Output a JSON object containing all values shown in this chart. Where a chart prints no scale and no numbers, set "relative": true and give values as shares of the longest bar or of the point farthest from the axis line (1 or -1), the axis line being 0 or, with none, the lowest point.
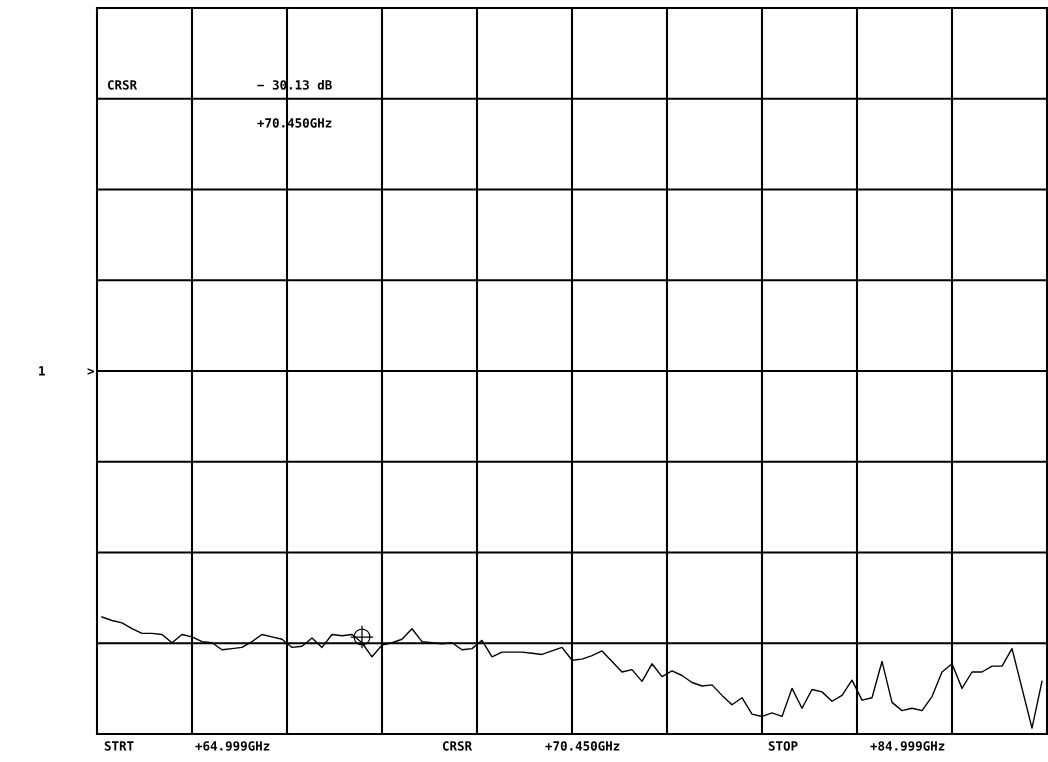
{
  "chart_data": {
    "type": "line",
    "relative": true,
    "grid": true,
    "legend": false,
    "annotations": [
      "CRSR",
      "− 30.13 dB",
      "+70.450GHz",
      "STRT",
      "+64.999GHz",
      "CRSR",
      "+70.450GHz",
      "STOP",
      "+84.999GHz",
      "1",
      ">"
    ],
    "categories": [
      null,
      null,
      null,
      null,
      null,
      null,
      null,
      null,
      null,
      null,
      null,
      null,
      null,
      null,
      null,
      null,
      null,
      null,
      null,
      null,
      null,
      null,
      null,
      null,
      null,
      null,
      null,
      null,
      null,
      null,
      null,
      null,
      null,
      null,
      null,
      null,
      null,
      null,
      null,
      null,
      null,
      null,
      null,
      null,
      null,
      null,
      null,
      null,
      null,
      null,
      null,
      null,
      null,
      null,
      null,
      null,
      null,
      null,
      null,
      null,
      null,
      null,
      null,
      null,
      null,
      null,
      null,
      null,
      null,
      null,
      null,
      null,
      null,
      null,
      null,
      null,
      null,
      null,
      null,
      null,
      null,
      null,
      null,
      null,
      null,
      null,
      null,
      null,
      null,
      null,
      null,
      null,
      null,
      null,
      null
    ],
    "series": [
      {
        "color": "#000000",
        "marker": "none",
        "line_style": "solid",
        "values": [
          1,
          0.97,
          0.95,
          0.9,
          0.86,
          0.86,
          0.85,
          0.78,
          0.85,
          0.83,
          0.79,
          0.78,
          0.72,
          0.73,
          0.74,
          0.79,
          0.85,
          0.83,
          0.81,
          0.74,
          0.75,
          0.82,
          0.74,
          0.85,
          0.84,
          0.85,
          0.78,
          0.66,
          0.76,
          0.78,
          0.81,
          0.9,
          0.79,
          0.78,
          0.77,
          0.78,
          0.72,
          0.73,
          0.8,
          0.66,
          0.7,
          0.7,
          0.7,
          0.69,
          0.68,
          0.71,
          0.74,
          0.63,
          0.64,
          0.67,
          0.71,
          0.62,
          0.53,
          0.55,
          0.45,
          0.6,
          0.49,
          0.54,
          0.5,
          0.44,
          0.41,
          0.42,
          0.33,
          0.25,
          0.31,
          0.17,
          0.15,
          0.18,
          0.15,
          0.39,
          0.22,
          0.38,
          0.36,
          0.28,
          0.33,
          0.46,
          0.29,
          0.31,
          0.62,
          0.27,
          0.2,
          0.22,
          0.2,
          0.32,
          0.53,
          0.6,
          0.39,
          0.53,
          0.53,
          0.58,
          0.58,
          0.73,
          0.39,
          0.05,
          0.45
        ]
      }
    ]
  }
}
